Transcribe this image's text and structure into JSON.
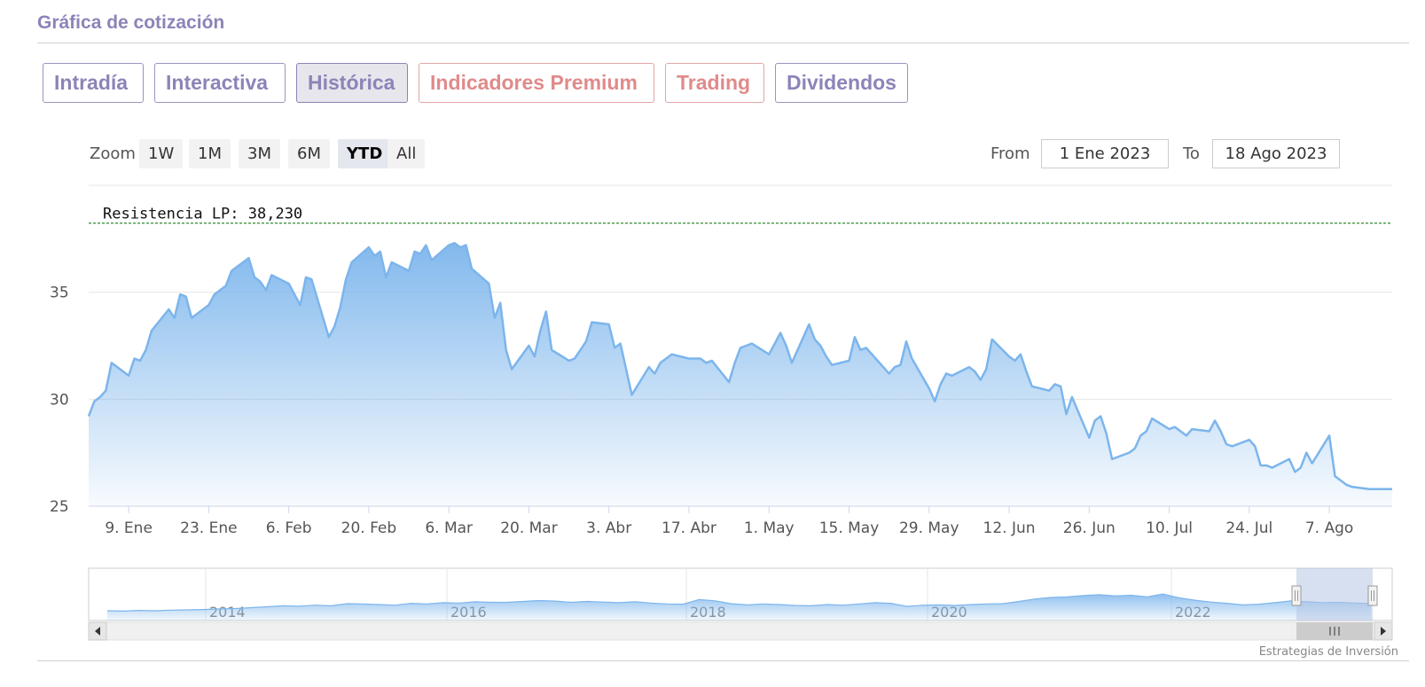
{
  "panel": {
    "title": "Gráfica de cotización"
  },
  "tabs": [
    {
      "label": "Intradía",
      "premium": false
    },
    {
      "label": "Interactiva",
      "premium": false
    },
    {
      "label": "Histórica",
      "premium": false,
      "active": true
    },
    {
      "label": "Indicadores Premium",
      "premium": true
    },
    {
      "label": "Trading",
      "premium": true
    },
    {
      "label": "Dividendos",
      "premium": false
    }
  ],
  "zoom": {
    "label": "Zoom",
    "buttons": [
      "1W",
      "1M",
      "3M",
      "6M",
      "YTD",
      "All"
    ],
    "selected": "YTD"
  },
  "range": {
    "from_label": "From",
    "from_value": "1 Ene 2023",
    "to_label": "To",
    "to_value": "18 Ago 2023"
  },
  "credits": "Estrategias de Inversión",
  "colors": {
    "line": "#7cb5ec",
    "resistance": "#2e8b2e",
    "tab_text": "#8c84b8",
    "premium_text": "#e08a8a"
  },
  "chart_data": {
    "type": "area",
    "title": "",
    "xlabel": "",
    "ylabel": "",
    "ylim": [
      25,
      40
    ],
    "y_ticks": [
      25,
      30,
      35
    ],
    "x_range": [
      "2023-01-02",
      "2023-08-18"
    ],
    "x_ticks": [
      {
        "date": "2023-01-09",
        "label": "9. Ene"
      },
      {
        "date": "2023-01-23",
        "label": "23. Ene"
      },
      {
        "date": "2023-02-06",
        "label": "6. Feb"
      },
      {
        "date": "2023-02-20",
        "label": "20. Feb"
      },
      {
        "date": "2023-03-06",
        "label": "6. Mar"
      },
      {
        "date": "2023-03-20",
        "label": "20. Mar"
      },
      {
        "date": "2023-04-03",
        "label": "3. Abr"
      },
      {
        "date": "2023-04-17",
        "label": "17. Abr"
      },
      {
        "date": "2023-05-01",
        "label": "1. May"
      },
      {
        "date": "2023-05-15",
        "label": "15. May"
      },
      {
        "date": "2023-05-29",
        "label": "29. May"
      },
      {
        "date": "2023-06-12",
        "label": "12. Jun"
      },
      {
        "date": "2023-06-26",
        "label": "26. Jun"
      },
      {
        "date": "2023-07-10",
        "label": "10. Jul"
      },
      {
        "date": "2023-07-24",
        "label": "24. Jul"
      },
      {
        "date": "2023-08-07",
        "label": "7. Ago"
      }
    ],
    "grid": true,
    "resistance": {
      "label": "Resistencia LP: 38,230",
      "value": 38.23
    },
    "series": [
      {
        "points": [
          [
            "2023-01-02",
            29.2
          ],
          [
            "2023-01-03",
            29.9
          ],
          [
            "2023-01-04",
            30.1
          ],
          [
            "2023-01-05",
            30.4
          ],
          [
            "2023-01-06",
            31.7
          ],
          [
            "2023-01-09",
            31.1
          ],
          [
            "2023-01-10",
            31.9
          ],
          [
            "2023-01-11",
            31.8
          ],
          [
            "2023-01-12",
            32.3
          ],
          [
            "2023-01-13",
            33.2
          ],
          [
            "2023-01-16",
            34.2
          ],
          [
            "2023-01-17",
            33.8
          ],
          [
            "2023-01-18",
            34.9
          ],
          [
            "2023-01-19",
            34.8
          ],
          [
            "2023-01-20",
            33.8
          ],
          [
            "2023-01-23",
            34.4
          ],
          [
            "2023-01-24",
            34.9
          ],
          [
            "2023-01-25",
            35.1
          ],
          [
            "2023-01-26",
            35.3
          ],
          [
            "2023-01-27",
            36.0
          ],
          [
            "2023-01-30",
            36.6
          ],
          [
            "2023-01-31",
            35.7
          ],
          [
            "2023-02-01",
            35.5
          ],
          [
            "2023-02-02",
            35.1
          ],
          [
            "2023-02-03",
            35.8
          ],
          [
            "2023-02-06",
            35.4
          ],
          [
            "2023-02-07",
            34.9
          ],
          [
            "2023-02-08",
            34.4
          ],
          [
            "2023-02-09",
            35.7
          ],
          [
            "2023-02-10",
            35.6
          ],
          [
            "2023-02-13",
            32.9
          ],
          [
            "2023-02-14",
            33.4
          ],
          [
            "2023-02-15",
            34.3
          ],
          [
            "2023-02-16",
            35.6
          ],
          [
            "2023-02-17",
            36.4
          ],
          [
            "2023-02-20",
            37.1
          ],
          [
            "2023-02-21",
            36.7
          ],
          [
            "2023-02-22",
            36.9
          ],
          [
            "2023-02-23",
            35.7
          ],
          [
            "2023-02-24",
            36.4
          ],
          [
            "2023-02-27",
            36.0
          ],
          [
            "2023-02-28",
            36.9
          ],
          [
            "2023-03-01",
            36.8
          ],
          [
            "2023-03-02",
            37.2
          ],
          [
            "2023-03-03",
            36.5
          ],
          [
            "2023-03-06",
            37.2
          ],
          [
            "2023-03-07",
            37.3
          ],
          [
            "2023-03-08",
            37.1
          ],
          [
            "2023-03-09",
            37.2
          ],
          [
            "2023-03-10",
            36.1
          ],
          [
            "2023-03-13",
            35.4
          ],
          [
            "2023-03-14",
            33.8
          ],
          [
            "2023-03-15",
            34.5
          ],
          [
            "2023-03-16",
            32.3
          ],
          [
            "2023-03-17",
            31.4
          ],
          [
            "2023-03-20",
            32.5
          ],
          [
            "2023-03-21",
            32.0
          ],
          [
            "2023-03-22",
            33.2
          ],
          [
            "2023-03-23",
            34.1
          ],
          [
            "2023-03-24",
            32.3
          ],
          [
            "2023-03-27",
            31.8
          ],
          [
            "2023-03-28",
            31.9
          ],
          [
            "2023-03-29",
            32.3
          ],
          [
            "2023-03-30",
            32.7
          ],
          [
            "2023-03-31",
            33.6
          ],
          [
            "2023-04-03",
            33.5
          ],
          [
            "2023-04-04",
            32.4
          ],
          [
            "2023-04-05",
            32.6
          ],
          [
            "2023-04-06",
            31.4
          ],
          [
            "2023-04-07",
            30.2
          ],
          [
            "2023-04-10",
            31.5
          ],
          [
            "2023-04-11",
            31.2
          ],
          [
            "2023-04-12",
            31.7
          ],
          [
            "2023-04-13",
            31.9
          ],
          [
            "2023-04-14",
            32.1
          ],
          [
            "2023-04-17",
            31.9
          ],
          [
            "2023-04-18",
            31.9
          ],
          [
            "2023-04-19",
            31.9
          ],
          [
            "2023-04-20",
            31.7
          ],
          [
            "2023-04-21",
            31.8
          ],
          [
            "2023-04-24",
            30.8
          ],
          [
            "2023-04-25",
            31.7
          ],
          [
            "2023-04-26",
            32.4
          ],
          [
            "2023-04-27",
            32.5
          ],
          [
            "2023-04-28",
            32.6
          ],
          [
            "2023-05-01",
            32.1
          ],
          [
            "2023-05-02",
            32.6
          ],
          [
            "2023-05-03",
            33.1
          ],
          [
            "2023-05-04",
            32.5
          ],
          [
            "2023-05-05",
            31.7
          ],
          [
            "2023-05-08",
            33.5
          ],
          [
            "2023-05-09",
            32.8
          ],
          [
            "2023-05-10",
            32.5
          ],
          [
            "2023-05-11",
            32.0
          ],
          [
            "2023-05-12",
            31.6
          ],
          [
            "2023-05-15",
            31.8
          ],
          [
            "2023-05-16",
            32.9
          ],
          [
            "2023-05-17",
            32.3
          ],
          [
            "2023-05-18",
            32.4
          ],
          [
            "2023-05-19",
            32.1
          ],
          [
            "2023-05-22",
            31.2
          ],
          [
            "2023-05-23",
            31.5
          ],
          [
            "2023-05-24",
            31.6
          ],
          [
            "2023-05-25",
            32.7
          ],
          [
            "2023-05-26",
            31.9
          ],
          [
            "2023-05-29",
            30.5
          ],
          [
            "2023-05-30",
            29.9
          ],
          [
            "2023-05-31",
            30.7
          ],
          [
            "2023-06-01",
            31.2
          ],
          [
            "2023-06-02",
            31.1
          ],
          [
            "2023-06-05",
            31.5
          ],
          [
            "2023-06-06",
            31.3
          ],
          [
            "2023-06-07",
            30.9
          ],
          [
            "2023-06-08",
            31.4
          ],
          [
            "2023-06-09",
            32.8
          ],
          [
            "2023-06-12",
            32.0
          ],
          [
            "2023-06-13",
            31.8
          ],
          [
            "2023-06-14",
            32.1
          ],
          [
            "2023-06-15",
            31.3
          ],
          [
            "2023-06-16",
            30.6
          ],
          [
            "2023-06-19",
            30.4
          ],
          [
            "2023-06-20",
            30.7
          ],
          [
            "2023-06-21",
            30.6
          ],
          [
            "2023-06-22",
            29.3
          ],
          [
            "2023-06-23",
            30.1
          ],
          [
            "2023-06-26",
            28.2
          ],
          [
            "2023-06-27",
            29.0
          ],
          [
            "2023-06-28",
            29.2
          ],
          [
            "2023-06-29",
            28.4
          ],
          [
            "2023-06-30",
            27.2
          ],
          [
            "2023-07-03",
            27.5
          ],
          [
            "2023-07-04",
            27.7
          ],
          [
            "2023-07-05",
            28.3
          ],
          [
            "2023-07-06",
            28.5
          ],
          [
            "2023-07-07",
            29.1
          ],
          [
            "2023-07-10",
            28.6
          ],
          [
            "2023-07-11",
            28.7
          ],
          [
            "2023-07-12",
            28.5
          ],
          [
            "2023-07-13",
            28.3
          ],
          [
            "2023-07-14",
            28.6
          ],
          [
            "2023-07-17",
            28.5
          ],
          [
            "2023-07-18",
            29.0
          ],
          [
            "2023-07-19",
            28.5
          ],
          [
            "2023-07-20",
            27.9
          ],
          [
            "2023-07-21",
            27.8
          ],
          [
            "2023-07-24",
            28.1
          ],
          [
            "2023-07-25",
            27.8
          ],
          [
            "2023-07-26",
            26.9
          ],
          [
            "2023-07-27",
            26.9
          ],
          [
            "2023-07-28",
            26.8
          ],
          [
            "2023-07-31",
            27.2
          ],
          [
            "2023-08-01",
            26.6
          ],
          [
            "2023-08-02",
            26.8
          ],
          [
            "2023-08-03",
            27.5
          ],
          [
            "2023-08-04",
            27.0
          ],
          [
            "2023-08-07",
            28.3
          ],
          [
            "2023-08-08",
            26.4
          ],
          [
            "2023-08-09",
            26.2
          ],
          [
            "2023-08-10",
            26.0
          ],
          [
            "2023-08-11",
            25.9
          ],
          [
            "2023-08-14",
            25.8
          ],
          [
            "2023-08-15",
            25.8
          ],
          [
            "2023-08-16",
            25.8
          ],
          [
            "2023-08-17",
            25.8
          ],
          [
            "2023-08-18",
            25.8
          ]
        ]
      }
    ],
    "navigator": {
      "x_ticks": [
        "2014",
        "2016",
        "2018",
        "2020",
        "2022"
      ],
      "series": [
        2.0,
        1.9,
        2.1,
        2.0,
        2.2,
        2.3,
        2.4,
        2.6,
        2.7,
        3.0,
        3.3,
        3.6,
        3.5,
        3.8,
        3.6,
        4.3,
        4.2,
        4.0,
        3.8,
        4.4,
        4.2,
        4.6,
        4.5,
        4.9,
        4.7,
        4.7,
        5.0,
        5.3,
        5.1,
        4.7,
        5.0,
        4.8,
        4.6,
        4.9,
        4.5,
        4.2,
        4.1,
        5.6,
        5.2,
        4.3,
        3.9,
        4.2,
        4.0,
        3.7,
        3.6,
        4.0,
        3.8,
        4.2,
        4.6,
        4.4,
        3.4,
        3.8,
        3.9,
        3.7,
        4.0,
        4.2,
        4.3,
        5.0,
        5.8,
        6.3,
        6.5,
        6.9,
        7.2,
        6.8,
        7.0,
        6.5,
        7.4,
        6.2,
        5.4,
        4.8,
        4.4,
        3.9,
        4.1,
        4.6,
        5.2,
        4.9,
        4.6,
        4.7,
        4.5,
        4.3
      ]
    }
  }
}
